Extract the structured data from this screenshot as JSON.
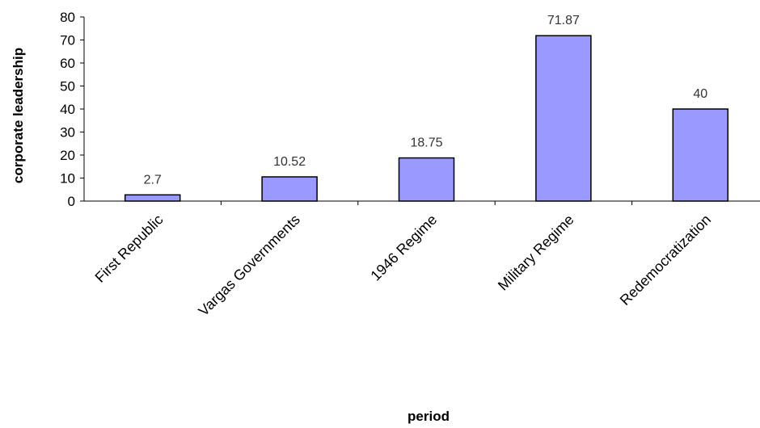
{
  "chart_data": {
    "type": "bar",
    "categories": [
      "First Republic",
      "Vargas Governments",
      "1946 Regime",
      "Military Regime",
      "Redemocratization"
    ],
    "values": [
      2.7,
      10.52,
      18.75,
      71.87,
      40
    ],
    "data_labels": [
      "2.7",
      "10.52",
      "18.75",
      "71.87",
      "40"
    ],
    "xlabel": "period",
    "ylabel": "corporate leadership",
    "ylim": [
      0,
      80
    ],
    "yticks": [
      0,
      10,
      20,
      30,
      40,
      50,
      60,
      70,
      80
    ],
    "grid": false,
    "legend": "none",
    "bar_color": "#9999ff",
    "bar_border_color": "#000000"
  }
}
